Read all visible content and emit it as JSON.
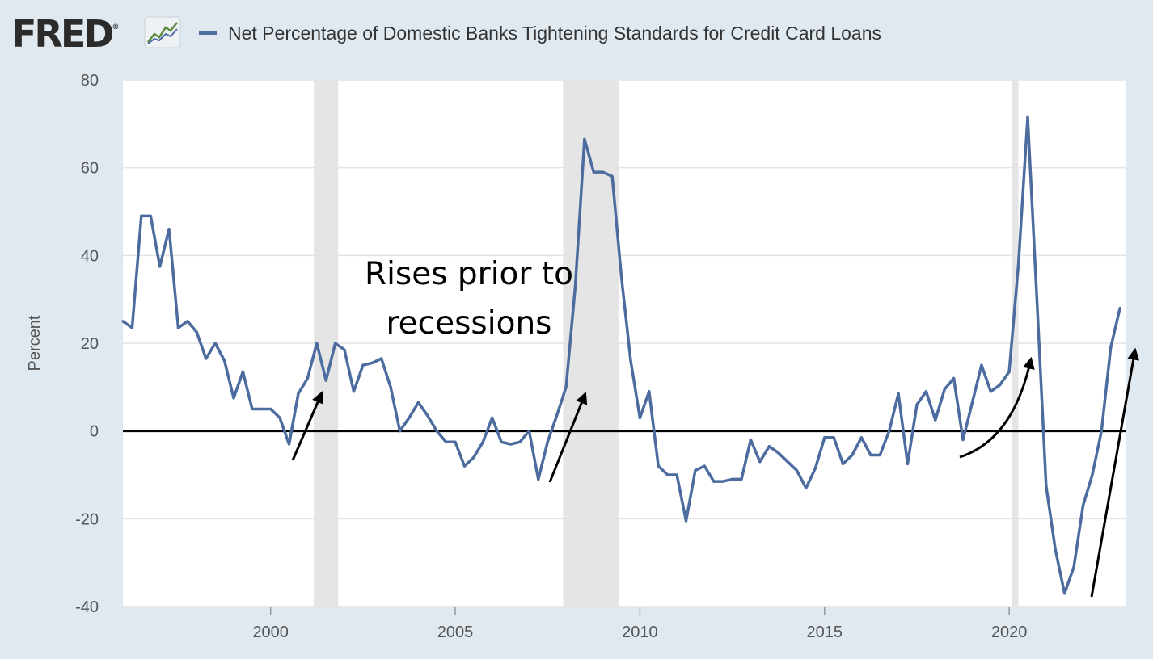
{
  "logo": {
    "text": "FRED",
    "mark": "®",
    "icon": "trend-chart-icon"
  },
  "colors": {
    "background": "#e1e9f0",
    "plot": "#ffffff",
    "series": "#4c6c9f",
    "recession": "#e5e5e5",
    "zero_line": "#000000"
  },
  "annotation": {
    "line1": "Rises prior to",
    "line2": "recessions"
  },
  "chart_data": {
    "type": "line",
    "title": "",
    "ylabel": "Percent",
    "xlabel": "",
    "xlim": [
      1996.0,
      2023.15
    ],
    "ylim": [
      -40,
      80
    ],
    "yticks": [
      80,
      60,
      40,
      20,
      0,
      -20,
      -40
    ],
    "ytick_labels": [
      "80",
      "60",
      "40",
      "20",
      "0",
      "-20",
      "-40"
    ],
    "xticks": [
      2000,
      2005,
      2010,
      2015,
      2020
    ],
    "xtick_labels": [
      "2000",
      "2005",
      "2010",
      "2015",
      "2020"
    ],
    "grid": "horizontal",
    "legend": "top",
    "recessions": [
      [
        2001.17,
        2001.83
      ],
      [
        2007.92,
        2009.42
      ],
      [
        2020.08,
        2020.25
      ]
    ],
    "reference_line": 0,
    "series": [
      {
        "name": "Net Percentage of Domestic Banks Tightening Standards for Credit Card Loans",
        "x": [
          1996.0,
          1996.25,
          1996.5,
          1996.75,
          1997.0,
          1997.25,
          1997.5,
          1997.75,
          1998.0,
          1998.25,
          1998.5,
          1998.75,
          1999.0,
          1999.25,
          1999.5,
          1999.75,
          2000.0,
          2000.25,
          2000.5,
          2000.75,
          2001.0,
          2001.25,
          2001.5,
          2001.75,
          2002.0,
          2002.25,
          2002.5,
          2002.75,
          2003.0,
          2003.25,
          2003.5,
          2003.75,
          2004.0,
          2004.25,
          2004.5,
          2004.75,
          2005.0,
          2005.25,
          2005.5,
          2005.75,
          2006.0,
          2006.25,
          2006.5,
          2006.75,
          2007.0,
          2007.25,
          2007.5,
          2007.75,
          2008.0,
          2008.25,
          2008.5,
          2008.75,
          2009.0,
          2009.25,
          2009.5,
          2009.75,
          2010.0,
          2010.25,
          2010.5,
          2010.75,
          2011.0,
          2011.25,
          2011.5,
          2011.75,
          2012.0,
          2012.25,
          2012.5,
          2012.75,
          2013.0,
          2013.25,
          2013.5,
          2013.75,
          2014.0,
          2014.25,
          2014.5,
          2014.75,
          2015.0,
          2015.25,
          2015.5,
          2015.75,
          2016.0,
          2016.25,
          2016.5,
          2016.75,
          2017.0,
          2017.25,
          2017.5,
          2017.75,
          2018.0,
          2018.25,
          2018.5,
          2018.75,
          2019.0,
          2019.25,
          2019.5,
          2019.75,
          2020.0,
          2020.25,
          2020.5,
          2020.75,
          2021.0,
          2021.25,
          2021.5,
          2021.75,
          2022.0,
          2022.25,
          2022.5,
          2022.75,
          2023.0
        ],
        "values": [
          25,
          23.5,
          49,
          49,
          37.5,
          46,
          23.5,
          25,
          22.5,
          16.5,
          20,
          16,
          7.5,
          13.5,
          5,
          5,
          5,
          3,
          -3,
          8.5,
          12,
          20,
          11.5,
          20,
          18.5,
          9,
          15,
          15.5,
          16.5,
          10,
          0,
          3,
          6.5,
          3.5,
          0,
          -2.5,
          -2.5,
          -8,
          -6,
          -2.5,
          3,
          -2.5,
          -3,
          -2.5,
          0,
          -11,
          -2.5,
          3.5,
          10,
          33,
          66.5,
          59,
          59,
          58,
          35,
          16,
          3,
          9,
          -8,
          -10,
          -10,
          -20.5,
          -9,
          -8,
          -11.5,
          -11.5,
          -11,
          -11,
          -2,
          -7,
          -3.5,
          -5,
          -7,
          -9,
          -13,
          -8.5,
          -1.5,
          -1.5,
          -7.5,
          -5.5,
          -1.5,
          -5.5,
          -5.5,
          0,
          8.5,
          -7.5,
          6,
          9,
          2.5,
          9.5,
          12,
          -2,
          6.5,
          15,
          9,
          10.5,
          13.5,
          38,
          71.5,
          30,
          -12.5,
          -27,
          -37,
          -31,
          -17,
          -10,
          0,
          19,
          28
        ]
      }
    ]
  }
}
